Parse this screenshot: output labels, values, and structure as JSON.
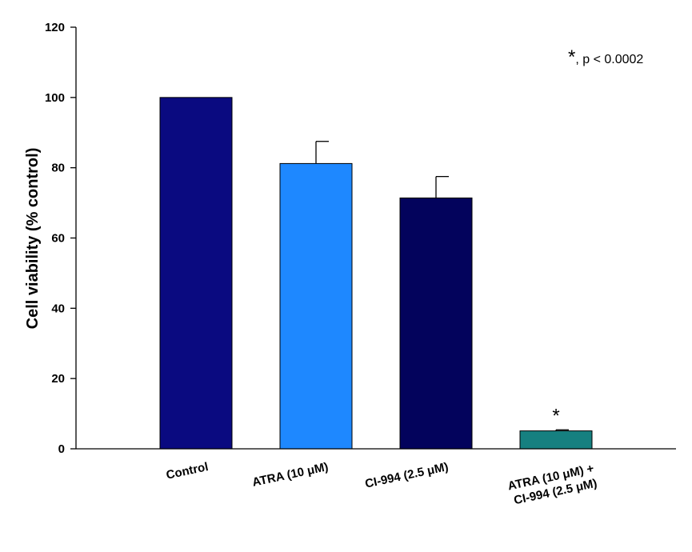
{
  "chart_data": {
    "type": "bar",
    "title": "",
    "xlabel": "",
    "ylabel": "Cell viability (% control)",
    "ylim": [
      0,
      120
    ],
    "yticks": [
      0,
      20,
      40,
      60,
      80,
      100,
      120
    ],
    "grid": false,
    "categories": [
      [
        "Control"
      ],
      [
        "ATRA (10 μM)"
      ],
      [
        "CI-994 (2.5 μM)"
      ],
      [
        "ATRA (10 μM) +",
        "CI-994 (2.5 μM)"
      ]
    ],
    "values": [
      100,
      81.2,
      71.4,
      5.1
    ],
    "errors": [
      0,
      6.3,
      6.1,
      0.3
    ],
    "colors": [
      "#0a0a80",
      "#1e88ff",
      "#03035c",
      "#168080"
    ],
    "significance_markers": [
      "",
      "",
      "",
      "*"
    ],
    "annotation": {
      "star": "*",
      "text": ", p < 0.0002"
    }
  }
}
